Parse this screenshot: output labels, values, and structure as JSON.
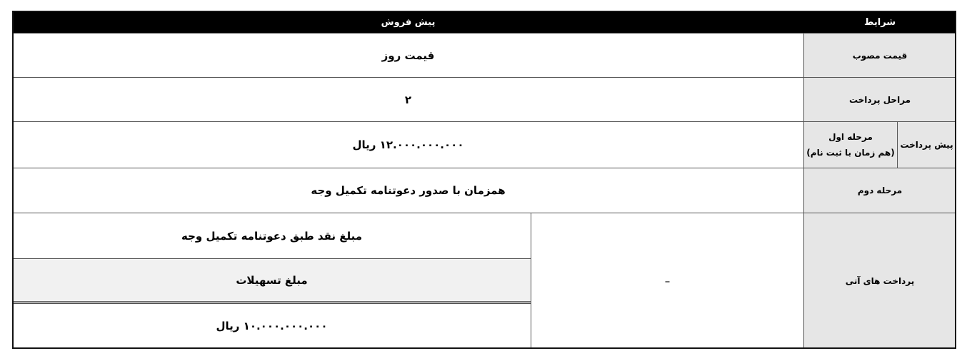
{
  "header": {
    "conditions": "شرایط",
    "presale": "پیش فروش"
  },
  "rows": [
    {
      "label": "قیمت مصوب",
      "value": "قیمت روز"
    },
    {
      "label": "مراحل پرداخت",
      "value": "۲"
    },
    {
      "group_label": "پیش پرداخت",
      "label_line1": "مرحله اول",
      "label_line2": "(هم زمان با ثبت نام)",
      "value": "۱۲.۰۰۰.۰۰۰.۰۰۰ ریال"
    },
    {
      "label": "مرحله دوم",
      "value": "همزمان با صدور دعوتنامه تکمیل وجه"
    },
    {
      "label": "پرداخت های آتی",
      "middle": "–",
      "cash": "مبلغ نقد طبق دعوتنامه تکمیل وجه",
      "loan_label": "مبلغ تسهیلات",
      "loan_value": "۱۰.۰۰۰.۰۰۰.۰۰۰ ریال"
    }
  ]
}
